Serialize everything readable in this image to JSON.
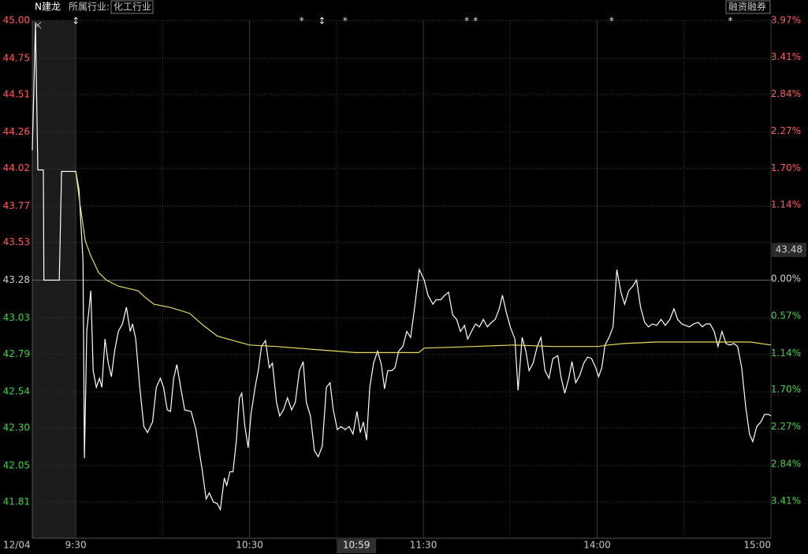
{
  "chart_data": {
    "type": "line",
    "stock_name": "N建龙",
    "industry_label": "所属行业:",
    "industry": "化工行业",
    "margin_tag": "融资融券",
    "date": "12/04",
    "reference": 43.28,
    "price_marker": 43.48,
    "cursor": {
      "value": 104,
      "label": "10:59"
    },
    "premarket": [
      0,
      15
    ],
    "xlim": [
      0,
      255
    ],
    "xticks": [
      {
        "value": 15,
        "label": "9:30"
      },
      {
        "value": 75,
        "label": "10:30"
      },
      {
        "value": 135,
        "label": "11:30"
      },
      {
        "value": 195,
        "label": "14:00"
      },
      {
        "value": 255,
        "label": "15:00"
      }
    ],
    "minor_xticks": [
      45,
      105,
      165,
      225
    ],
    "ylim": [
      41.57,
      45.0
    ],
    "yticks": [
      {
        "value": 45,
        "label": "45.00"
      },
      44.75,
      44.51,
      44.26,
      44.02,
      43.77,
      43.53,
      43.28,
      43.03,
      42.79,
      42.54,
      {
        "value": 42.3,
        "label": "42.30"
      },
      42.05,
      41.81
    ],
    "y2lim": [
      -3.98,
      3.97
    ],
    "y2ticks": [
      {
        "value": 3.97,
        "label": "3.97%"
      },
      {
        "value": 3.41,
        "label": "3.41%"
      },
      {
        "value": 2.84,
        "label": "2.84%"
      },
      {
        "value": 2.27,
        "label": "2.27%"
      },
      {
        "value": 1.7,
        "label": "1.70%"
      },
      {
        "value": 1.14,
        "label": "1.14%"
      },
      {
        "value": 0,
        "label": "0.00%"
      },
      {
        "value": -0.57,
        "label": "0.57%"
      },
      {
        "value": -1.14,
        "label": "1.14%"
      },
      {
        "value": -1.7,
        "label": "1.70%"
      },
      {
        "value": -2.27,
        "label": "2.27%"
      },
      {
        "value": -2.84,
        "label": "2.84%"
      },
      {
        "value": -3.41,
        "label": "3.41%"
      }
    ],
    "annotations": [
      {
        "x": 15,
        "label": "↕"
      },
      {
        "x": 93,
        "label": "*"
      },
      {
        "x": 100,
        "label": "↕"
      },
      {
        "x": 108,
        "label": "*"
      },
      {
        "x": 150,
        "label": "*"
      },
      {
        "x": 153,
        "label": "*"
      },
      {
        "x": 200,
        "label": "*"
      },
      {
        "x": 241,
        "label": "*"
      }
    ],
    "grid": true,
    "series": [
      {
        "color": "#ffffff",
        "x": [
          0,
          1.1,
          1.9,
          3.8,
          4,
          9.3,
          10.1,
          15,
          16.1,
          17.5,
          18,
          18.8,
          20.2,
          21,
          22.1,
          23.2,
          24,
          25.1,
          26.2,
          27.3,
          28.4,
          29.7,
          31.1,
          32.5,
          33.8,
          34.6,
          35.7,
          37.1,
          38.5,
          39.8,
          41.5,
          42.8,
          44.2,
          45.3,
          46.6,
          47.7,
          48.8,
          49.9,
          51.3,
          52.6,
          54.8,
          56.5,
          57.5,
          58.6,
          60,
          61.1,
          62.5,
          63.8,
          64.9,
          66.3,
          67.1,
          68.2,
          69.3,
          70.4,
          71.5,
          72.3,
          73.4,
          74.5,
          75.5,
          76.9,
          78,
          79.1,
          80.5,
          81.8,
          82.9,
          84.3,
          85.4,
          86.7,
          88.1,
          89.5,
          90.8,
          92.2,
          93.5,
          94.6,
          96,
          97.4,
          98.7,
          100.1,
          101.5,
          102.8,
          103.9,
          105.3,
          106.6,
          108,
          109.4,
          110.7,
          112.1,
          113.2,
          114.3,
          115.4,
          116.5,
          117.8,
          119.2,
          120.5,
          121.6,
          122.7,
          124.1,
          125.2,
          126.5,
          127.9,
          129.3,
          130.6,
          132,
          133.6,
          135.3,
          136.6,
          138.3,
          139.4,
          141,
          142.4,
          143.7,
          145.1,
          146.5,
          147.8,
          149.2,
          150.3,
          151.6,
          153,
          154.4,
          155.7,
          157.1,
          158.5,
          159.8,
          161.2,
          162.3,
          163.6,
          165,
          166.6,
          167.7,
          169.1,
          170.4,
          171.5,
          172.9,
          174.3,
          175.6,
          177,
          178.4,
          179.7,
          181.4,
          182.5,
          183.8,
          185.2,
          186.3,
          187.6,
          189,
          190.4,
          191.7,
          193.1,
          194.5,
          195.5,
          196.6,
          197.7,
          199.1,
          200.5,
          201.8,
          203.2,
          204.5,
          205.9,
          207.3,
          208.6,
          210,
          211.4,
          212.7,
          214.1,
          215.5,
          217.1,
          218.5,
          220.1,
          221.5,
          222.8,
          224.2,
          225.5,
          226.9,
          228.3,
          229.9,
          231.3,
          232.6,
          234,
          235.4,
          236.7,
          238.1,
          239.5,
          240.8,
          242.2,
          243.5,
          244.9,
          246.3,
          247.6,
          248.7,
          250.1,
          251.5,
          252.8,
          254.2,
          255
        ],
        "values": [
          44.14,
          44.98,
          44.01,
          44.01,
          43.28,
          43.28,
          44.0,
          44.0,
          43.88,
          43.41,
          42.1,
          42.94,
          43.21,
          42.68,
          42.57,
          42.63,
          42.57,
          42.89,
          42.73,
          42.64,
          42.81,
          42.94,
          42.99,
          43.1,
          42.94,
          42.99,
          42.89,
          42.57,
          42.31,
          42.27,
          42.34,
          42.57,
          42.63,
          42.57,
          42.42,
          42.41,
          42.63,
          42.72,
          42.56,
          42.42,
          42.41,
          42.29,
          42.16,
          42.03,
          41.83,
          41.87,
          41.81,
          41.8,
          41.76,
          41.97,
          41.92,
          42.01,
          42.01,
          42.21,
          42.5,
          42.53,
          42.31,
          42.17,
          42.39,
          42.57,
          42.68,
          42.84,
          42.88,
          42.7,
          42.73,
          42.47,
          42.38,
          42.42,
          42.5,
          42.42,
          42.47,
          42.68,
          42.74,
          42.47,
          42.38,
          42.15,
          42.11,
          42.18,
          42.57,
          42.6,
          42.42,
          42.29,
          42.31,
          42.29,
          42.31,
          42.26,
          42.41,
          42.27,
          42.34,
          42.22,
          42.57,
          42.73,
          42.81,
          42.72,
          42.56,
          42.68,
          42.68,
          42.7,
          42.81,
          42.84,
          42.94,
          42.9,
          43.1,
          43.35,
          43.28,
          43.18,
          43.12,
          43.15,
          43.15,
          43.18,
          43.2,
          43.05,
          43.02,
          42.94,
          42.98,
          42.89,
          42.94,
          42.99,
          42.97,
          43.02,
          42.97,
          43.0,
          43.02,
          43.09,
          43.18,
          43.07,
          42.97,
          42.89,
          42.55,
          42.9,
          42.81,
          42.68,
          42.73,
          42.84,
          42.9,
          42.68,
          42.63,
          42.76,
          42.78,
          42.64,
          42.53,
          42.63,
          42.74,
          42.6,
          42.65,
          42.73,
          42.77,
          42.76,
          42.7,
          42.64,
          42.7,
          42.85,
          42.9,
          42.97,
          43.35,
          43.2,
          43.12,
          43.21,
          43.24,
          43.28,
          43.1,
          43.0,
          42.97,
          42.99,
          42.98,
          43.02,
          42.98,
          43.02,
          43.09,
          43.02,
          42.99,
          42.98,
          42.97,
          42.99,
          43.0,
          42.97,
          42.99,
          42.99,
          42.94,
          42.84,
          42.94,
          42.86,
          42.85,
          42.86,
          42.84,
          42.7,
          42.44,
          42.26,
          42.21,
          42.31,
          42.34,
          42.39,
          42.39,
          42.38
        ]
      },
      {
        "color": "#e6dc5a",
        "x": [
          15,
          16.1,
          18.3,
          20.2,
          22.9,
          25.6,
          29.7,
          36.5,
          39.3,
          42,
          47.5,
          54.3,
          58.4,
          63.8,
          69.3,
          75,
          84.3,
          97.9,
          111.5,
          119.7,
          133.4,
          135.3,
          152.5,
          166.1,
          179.7,
          195.3,
          198.8,
          204.3,
          215.2,
          234.3,
          247.9,
          255
        ],
        "values": [
          44.0,
          43.83,
          43.54,
          43.44,
          43.33,
          43.28,
          43.24,
          43.21,
          43.16,
          43.12,
          43.1,
          43.06,
          42.99,
          42.91,
          42.88,
          42.85,
          42.84,
          42.82,
          42.8,
          42.8,
          42.8,
          42.83,
          42.84,
          42.85,
          42.84,
          42.84,
          42.85,
          42.86,
          42.87,
          42.87,
          42.87,
          42.85
        ]
      }
    ]
  }
}
